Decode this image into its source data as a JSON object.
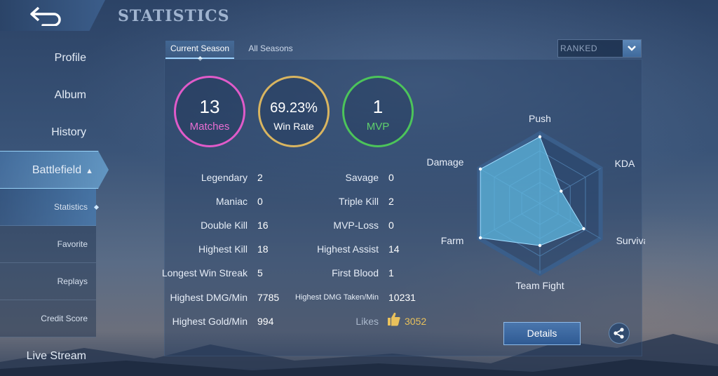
{
  "header": {
    "title": "STATISTICS",
    "back_icon": "back-arrow-icon"
  },
  "sidebar": {
    "items": [
      {
        "label": "Profile"
      },
      {
        "label": "Album"
      },
      {
        "label": "History"
      },
      {
        "label": "Battlefield",
        "expanded": true
      }
    ],
    "sub_items": [
      {
        "label": "Statistics",
        "active": true
      },
      {
        "label": "Favorite"
      },
      {
        "label": "Replays"
      },
      {
        "label": "Credit Score"
      }
    ],
    "live_stream": "Live Stream"
  },
  "tabs": {
    "current": "Current Season",
    "all": "All Seasons"
  },
  "mode_select": {
    "value": "RANKED"
  },
  "summary": {
    "matches": {
      "value": "13",
      "label": "Matches",
      "color": "#e05bc9"
    },
    "win_rate": {
      "value": "69.23%",
      "label": "Win Rate",
      "color": "#d9b560"
    },
    "mvp": {
      "value": "1",
      "label": "MVP",
      "color": "#4cc45a"
    }
  },
  "stats_left": [
    {
      "label": "Legendary",
      "value": "2"
    },
    {
      "label": "Maniac",
      "value": "0"
    },
    {
      "label": "Double Kill",
      "value": "16"
    },
    {
      "label": "Highest Kill",
      "value": "18"
    },
    {
      "label": "Longest Win Streak",
      "value": "5"
    },
    {
      "label": "Highest DMG/Min",
      "value": "7785"
    },
    {
      "label": "Highest Gold/Min",
      "value": "994"
    }
  ],
  "stats_right": [
    {
      "label": "Savage",
      "value": "0"
    },
    {
      "label": "Triple Kill",
      "value": "2"
    },
    {
      "label": "MVP-Loss",
      "value": "0"
    },
    {
      "label": "Highest Assist",
      "value": "14"
    },
    {
      "label": "First Blood",
      "value": "1"
    },
    {
      "label": "Highest DMG Taken/Min",
      "value": "10231"
    },
    {
      "label": "Likes",
      "value": "3052",
      "icon": "thumbs-up-icon"
    }
  ],
  "radar": {
    "axes": [
      {
        "label": "Push",
        "value": 0.95
      },
      {
        "label": "KDA",
        "value": 0.35
      },
      {
        "label": "Survival",
        "value": 0.72
      },
      {
        "label": "Team Fight",
        "value": 0.6
      },
      {
        "label": "Farm",
        "value": 0.98
      },
      {
        "label": "Damage",
        "value": 0.98
      }
    ],
    "fill_color": "#5fb8e0"
  },
  "buttons": {
    "details": "Details",
    "share_icon": "share-icon"
  }
}
